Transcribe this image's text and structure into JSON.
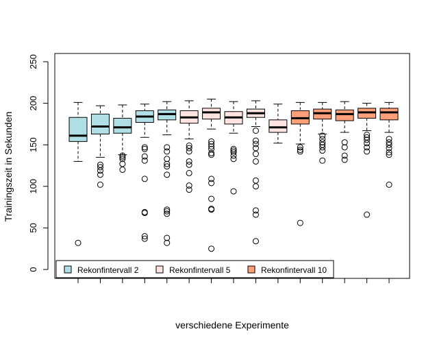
{
  "chart_data": {
    "type": "boxplot",
    "title": "",
    "xlabel": "verschiedene Experimente",
    "ylabel": "Trainingszeit in Sekunden",
    "ylim": [
      0,
      250
    ],
    "yticks": [
      0,
      50,
      100,
      150,
      200,
      250
    ],
    "xtick_labels": [],
    "grid": false,
    "legend_position": "bottom-left",
    "legend": [
      {
        "name": "Rekonfintervall 2",
        "color": "#b0e0e6"
      },
      {
        "name": "Rekonfintervall 5",
        "color": "#ffe4e1"
      },
      {
        "name": "Rekonfintervall 10",
        "color": "#ffa07a"
      }
    ],
    "boxes": [
      {
        "group": 0,
        "whisker_low": 130,
        "q1": 154,
        "median": 161,
        "q3": 183,
        "whisker_high": 201,
        "outliers": [
          32
        ]
      },
      {
        "group": 0,
        "whisker_low": 135,
        "q1": 163,
        "median": 172,
        "q3": 187,
        "whisker_high": 197,
        "outliers": [
          126,
          123,
          119,
          114,
          102
        ]
      },
      {
        "group": 0,
        "whisker_low": 138,
        "q1": 164,
        "median": 171,
        "q3": 182,
        "whisker_high": 198,
        "outliers": [
          137,
          135,
          133,
          127,
          120
        ]
      },
      {
        "group": 0,
        "whisker_low": 159,
        "q1": 177,
        "median": 184,
        "q3": 191,
        "whisker_high": 199,
        "outliers": [
          147,
          145,
          136,
          131,
          109,
          69,
          68,
          40,
          37
        ]
      },
      {
        "group": 0,
        "whisker_low": 162,
        "q1": 180,
        "median": 187,
        "q3": 192,
        "whisker_high": 202,
        "outliers": [
          147,
          142,
          133,
          127,
          124,
          114,
          72,
          70,
          67,
          38,
          32
        ]
      },
      {
        "group": 1,
        "whisker_low": 157,
        "q1": 176,
        "median": 183,
        "q3": 191,
        "whisker_high": 203,
        "outliers": [
          149,
          146,
          142,
          130,
          126,
          116,
          101,
          96
        ]
      },
      {
        "group": 1,
        "whisker_low": 169,
        "q1": 181,
        "median": 189,
        "q3": 194,
        "whisker_high": 205,
        "outliers": [
          154,
          151,
          148,
          145,
          140,
          138,
          109,
          104,
          85,
          73,
          72,
          25
        ]
      },
      {
        "group": 1,
        "whisker_low": 164,
        "q1": 175,
        "median": 183,
        "q3": 190,
        "whisker_high": 202,
        "outliers": [
          145,
          143,
          141,
          137,
          133,
          94
        ]
      },
      {
        "group": 1,
        "whisker_low": 172,
        "q1": 183,
        "median": 188,
        "q3": 193,
        "whisker_high": 203,
        "outliers": [
          167,
          155,
          151,
          146,
          139,
          130,
          107,
          100,
          71,
          66,
          34
        ]
      },
      {
        "group": 1,
        "whisker_low": 152,
        "q1": 165,
        "median": 171,
        "q3": 180,
        "whisker_high": 199,
        "outliers": []
      },
      {
        "group": 2,
        "whisker_low": 151,
        "q1": 175,
        "median": 182,
        "q3": 191,
        "whisker_high": 201,
        "outliers": [
          147,
          144,
          142,
          56
        ]
      },
      {
        "group": 2,
        "whisker_low": 163,
        "q1": 181,
        "median": 188,
        "q3": 193,
        "whisker_high": 201,
        "outliers": [
          161,
          157,
          153,
          150,
          147,
          143,
          131
        ]
      },
      {
        "group": 2,
        "whisker_low": 165,
        "q1": 179,
        "median": 187,
        "q3": 192,
        "whisker_high": 202,
        "outliers": [
          153,
          147,
          137,
          132
        ]
      },
      {
        "group": 2,
        "whisker_low": 167,
        "q1": 182,
        "median": 189,
        "q3": 194,
        "whisker_high": 200,
        "outliers": [
          162,
          159,
          156,
          152,
          147,
          142,
          66
        ]
      },
      {
        "group": 2,
        "whisker_low": 165,
        "q1": 180,
        "median": 189,
        "q3": 194,
        "whisker_high": 201,
        "outliers": [
          157,
          153,
          150,
          146,
          141,
          138,
          102
        ]
      }
    ]
  }
}
